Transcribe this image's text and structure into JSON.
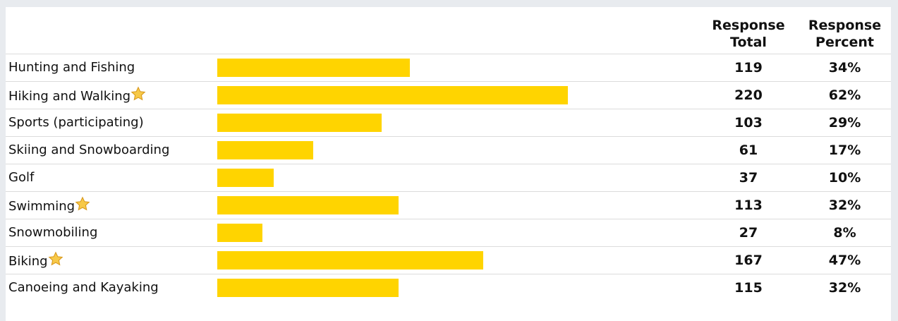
{
  "table": {
    "headers": [
      "Response Total",
      "Response Percent"
    ],
    "rows": [
      {
        "label": "Hunting and Fishing",
        "total": 119,
        "percent": 34,
        "percent_label": "34%",
        "highlighted": false
      },
      {
        "label": "Hiking and Walking",
        "total": 220,
        "percent": 62,
        "percent_label": "62%",
        "highlighted": true
      },
      {
        "label": "Sports (participating)",
        "total": 103,
        "percent": 29,
        "percent_label": "29%",
        "highlighted": false
      },
      {
        "label": "Skiing and Snowboarding",
        "total": 61,
        "percent": 17,
        "percent_label": "17%",
        "highlighted": false
      },
      {
        "label": "Golf",
        "total": 37,
        "percent": 10,
        "percent_label": "10%",
        "highlighted": false
      },
      {
        "label": "Swimming",
        "total": 113,
        "percent": 32,
        "percent_label": "32%",
        "highlighted": true
      },
      {
        "label": "Snowmobiling",
        "total": 27,
        "percent": 8,
        "percent_label": "8%",
        "highlighted": false
      },
      {
        "label": "Biking",
        "total": 167,
        "percent": 47,
        "percent_label": "47%",
        "highlighted": true
      },
      {
        "label": "Canoeing and Kayaking",
        "total": 115,
        "percent": 32,
        "percent_label": "32%",
        "highlighted": false
      }
    ]
  }
}
